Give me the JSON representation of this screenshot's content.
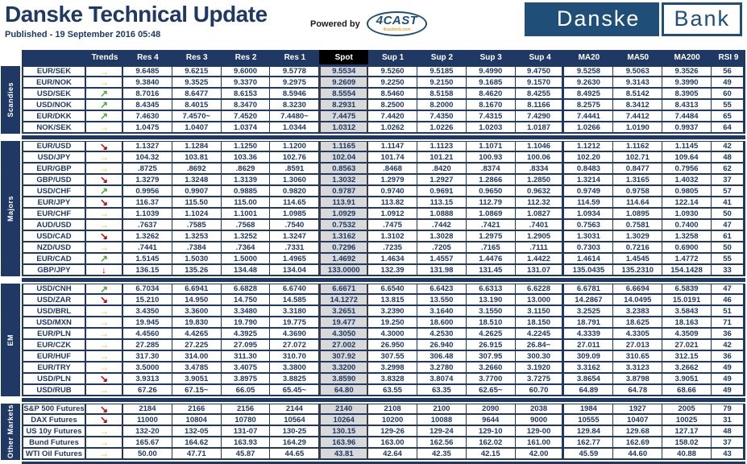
{
  "header": {
    "title": "Danske Technical Update",
    "published": "Published - 19 September 2016 05:48",
    "powered_by": "Powered by",
    "cast_logo": "4CAST",
    "cast_sub": "4castweb.com",
    "bank_logo_left": "Danske",
    "bank_logo_right": "Bank"
  },
  "colors": {
    "navy": "#1F3864",
    "logo_navy": "#1F4E79",
    "spot_header_bg": "#000000",
    "spot_cell_bg": "#D9D9D9",
    "trend_flat": "#FFC000",
    "trend_up": "#4EA72E",
    "trend_down": "#C00000"
  },
  "trends_map": {
    "flat": {
      "glyph": "→",
      "color": "#FFC000"
    },
    "up": {
      "glyph": "↗",
      "color": "#4EA72E"
    },
    "down": {
      "glyph": "↘",
      "color": "#C00000"
    },
    "down-strong": {
      "glyph": "↓",
      "color": "#C00000"
    }
  },
  "table": {
    "columns": [
      "Trends",
      "Res 4",
      "Res 3",
      "Res 2",
      "Res 1",
      "Spot",
      "Sup 1",
      "Sup 2",
      "Sup 3",
      "Sup 4",
      "MA20",
      "MA50",
      "MA200",
      "RSI 9"
    ],
    "groups": [
      {
        "label": "Scandies",
        "rows": [
          {
            "pair": "EUR/SEK",
            "trend": "flat",
            "values": [
              "9.6485",
              "9.6215",
              "9.6000",
              "9.5778",
              "9.5534",
              "9.5260",
              "9.5185",
              "9.4990",
              "9.4750",
              "9.5258",
              "9.5063",
              "9.3526",
              "56"
            ]
          },
          {
            "pair": "EUR/NOK",
            "trend": "flat",
            "values": [
              "9.3840",
              "9.3525",
              "9.3370",
              "9.2975",
              "9.2609",
              "9.2250",
              "9.2150",
              "9.1685",
              "9.1570",
              "9.2630",
              "9.3143",
              "9.3990",
              "49"
            ]
          },
          {
            "pair": "USD/SEK",
            "trend": "up",
            "values": [
              "8.7016",
              "8.6477",
              "8.6153",
              "8.5946",
              "8.5554",
              "8.5460",
              "8.5158",
              "8.4620",
              "8.4255",
              "8.4925",
              "8.5142",
              "8.3905",
              "60"
            ]
          },
          {
            "pair": "USD/NOK",
            "trend": "up",
            "values": [
              "8.4345",
              "8.4015",
              "8.3470",
              "8.3230",
              "8.2931",
              "8.2500",
              "8.2000",
              "8.1670",
              "8.1166",
              "8.2575",
              "8.3412",
              "8.4313",
              "55"
            ]
          },
          {
            "pair": "EUR/DKK",
            "trend": "up",
            "values": [
              "7.4630",
              "7.4570~",
              "7.4520",
              "7.4480~",
              "7.4475",
              "7.4420",
              "7.4350",
              "7.4315",
              "7.4290",
              "7.4441",
              "7.4412",
              "7.4484",
              "65"
            ]
          },
          {
            "pair": "NOK/SEK",
            "trend": "flat",
            "values": [
              "1.0475",
              "1.0407",
              "1.0374",
              "1.0344",
              "1.0312",
              "1.0262",
              "1.0226",
              "1.0203",
              "1.0187",
              "1.0266",
              "1.0190",
              "0.9937",
              "64"
            ]
          }
        ]
      },
      {
        "label": "Majors",
        "rows": [
          {
            "pair": "EUR/USD",
            "trend": "down",
            "values": [
              "1.1327",
              "1.1284",
              "1.1250",
              "1.1200",
              "1.1165",
              "1.1147",
              "1.1123",
              "1.1071",
              "1.1046",
              "1.1212",
              "1.1162",
              "1.1145",
              "42"
            ]
          },
          {
            "pair": "USD/JPY",
            "trend": "flat",
            "values": [
              "104.32",
              "103.81",
              "103.36",
              "102.76",
              "102.04",
              "101.74",
              "101.21",
              "100.93",
              "100.06",
              "102.20",
              "102.71",
              "109.64",
              "48"
            ]
          },
          {
            "pair": "EUR/GBP",
            "trend": "flat",
            "values": [
              ".8725",
              ".8692",
              ".8629",
              ".8591",
              "0.8563",
              ".8468",
              ".8420",
              ".8374",
              ".8334",
              "0.8483",
              "0.8477",
              "0.7956",
              "62"
            ]
          },
          {
            "pair": "GBP/USD",
            "trend": "down",
            "values": [
              "1.3279",
              "1.3248",
              "1.3139",
              "1.3060",
              "1.3032",
              "1.2979",
              "1.2927",
              "1.2866",
              "1.2850",
              "1.3214",
              "1.3165",
              "1.4032",
              "37"
            ]
          },
          {
            "pair": "USD/CHF",
            "trend": "up",
            "values": [
              "0.9956",
              "0.9907",
              "0.9885",
              "0.9820",
              "0.9787",
              "0.9740",
              "0.9691",
              "0.9650",
              "0.9632",
              "0.9749",
              "0.9758",
              "0.9805",
              "57"
            ]
          },
          {
            "pair": "EUR/JPY",
            "trend": "down",
            "values": [
              "116.37",
              "115.50",
              "115.00",
              "114.65",
              "113.91",
              "113.82",
              "113.15",
              "112.79",
              "112.32",
              "114.59",
              "114.64",
              "122.14",
              "41"
            ]
          },
          {
            "pair": "EUR/CHF",
            "trend": "flat",
            "values": [
              "1.1039",
              "1.1024",
              "1.1001",
              "1.0985",
              "1.0929",
              "1.0912",
              "1.0888",
              "1.0869",
              "1.0827",
              "1.0934",
              "1.0895",
              "1.0930",
              "50"
            ]
          },
          {
            "pair": "AUD/USD",
            "trend": "flat",
            "values": [
              ".7637",
              ".7585",
              ".7568",
              ".7540",
              "0.7532",
              ".7475",
              ".7442",
              ".7421",
              ".7401",
              "0.7563",
              "0.7581",
              "0.7400",
              "47"
            ]
          },
          {
            "pair": "USD/CAD",
            "trend": "down",
            "values": [
              "1.3262",
              "1.3253",
              "1.3252",
              "1.3247",
              "1.3162",
              "1.3102",
              "1.3028",
              "1.2975",
              "1.2905",
              "1.3031",
              "1.3029",
              "1.3258",
              "61"
            ]
          },
          {
            "pair": "NZD/USD",
            "trend": "flat",
            "values": [
              ".7441",
              ".7384",
              ".7364",
              ".7331",
              "0.7296",
              ".7235",
              ".7205",
              ".7165",
              ".7111",
              "0.7303",
              "0.7216",
              "0.6900",
              "50"
            ]
          },
          {
            "pair": "EUR/CAD",
            "trend": "up",
            "values": [
              "1.5145",
              "1.5030",
              "1.5000",
              "1.4965",
              "1.4692",
              "1.4634",
              "1.4557",
              "1.4476",
              "1.4422",
              "1.4614",
              "1.4545",
              "1.4772",
              "55"
            ]
          },
          {
            "pair": "GBP/JPY",
            "trend": "down-strong",
            "values": [
              "136.15",
              "135.26",
              "134.48",
              "134.04",
              "133.0000",
              "132.39",
              "131.98",
              "131.45",
              "131.07",
              "135.0435",
              "135.2310",
              "154.1428",
              "33"
            ]
          }
        ]
      },
      {
        "label": "EM",
        "rows": [
          {
            "pair": "USD/CNH",
            "trend": "up",
            "values": [
              "6.7034",
              "6.6941",
              "6.6828",
              "6.6740",
              "6.6671",
              "6.6540",
              "6.6423",
              "6.6313",
              "6.6228",
              "6.6781",
              "6.6694",
              "6.5839",
              "47"
            ]
          },
          {
            "pair": "USD/ZAR",
            "trend": "down",
            "values": [
              "15.210",
              "14.950",
              "14.750",
              "14.585",
              "14.1272",
              "13.815",
              "13.550",
              "13.190",
              "13.000",
              "14.2867",
              "14.0495",
              "15.0191",
              "46"
            ]
          },
          {
            "pair": "USD/BRL",
            "trend": "flat",
            "values": [
              "3.4350",
              "3.3600",
              "3.3480",
              "3.3180",
              "3.2651",
              "3.2390",
              "3.1640",
              "3.1550",
              "3.1150",
              "3.2525",
              "3.2383",
              "3.5843",
              "51"
            ]
          },
          {
            "pair": "USD/MXN",
            "trend": "flat",
            "values": [
              "19.945",
              "19.830",
              "19.790",
              "19.775",
              "19.477",
              "19.250",
              "18.600",
              "18.510",
              "18.150",
              "18.791",
              "18.625",
              "18.163",
              "71"
            ]
          },
          {
            "pair": "EUR/PLN",
            "trend": "flat",
            "values": [
              "4.4560",
              "4.4265",
              "4.3925",
              "4.3690",
              "4.3050",
              "4.3000",
              "4.2530",
              "4.2625",
              "4.2245",
              "4.3339",
              "4.3305",
              "4.3509",
              "36"
            ]
          },
          {
            "pair": "EUR/CZK",
            "trend": "flat",
            "values": [
              "27.285",
              "27.225",
              "27.095",
              "27.072",
              "27.002",
              "26.950",
              "26.940",
              "26.915",
              "26.84~",
              "27.011",
              "27.013",
              "27.021",
              "42"
            ]
          },
          {
            "pair": "EUR/HUF",
            "trend": "flat",
            "values": [
              "317.30",
              "314.00",
              "311.30",
              "310.70",
              "307.92",
              "307.55",
              "306.48",
              "307.95",
              "300.30",
              "309.09",
              "310.65",
              "312.15",
              "36"
            ]
          },
          {
            "pair": "EUR/TRY",
            "trend": "flat",
            "values": [
              "3.5000",
              "3.4785",
              "3.4075",
              "3.3800",
              "3.3200",
              "3.2998",
              "3.2780",
              "3.2660",
              "3.1920",
              "3.3162",
              "3.3123",
              "3.2662",
              "49"
            ]
          },
          {
            "pair": "USD/PLN",
            "trend": "down",
            "values": [
              "3.9313",
              "3.9051",
              "3.8975",
              "3.8825",
              "3.8590",
              "3.8328",
              "3.8074",
              "3.7700",
              "3.7275",
              "3.8654",
              "3.8798",
              "3.9051",
              "49"
            ]
          },
          {
            "pair": "USD/RUB",
            "trend": "flat",
            "values": [
              "67.26",
              "67.15~",
              "66.05",
              "65.45~",
              "64.80",
              "63.55",
              "63.35",
              "62.65~",
              "60.70",
              "64.89",
              "64.78",
              "68.66",
              "49"
            ]
          }
        ]
      },
      {
        "label": "Other Markets",
        "rows": [
          {
            "pair": "S&P 500 Futures",
            "trend": "down",
            "values": [
              "2184",
              "2166",
              "2156",
              "2144",
              "2140",
              "2108",
              "2100",
              "2090",
              "2038",
              "1984",
              "1927",
              "2005",
              "79"
            ]
          },
          {
            "pair": "DAX Futures",
            "trend": "down",
            "values": [
              "11000",
              "10804",
              "10780",
              "10564",
              "10264",
              "10200",
              "10088",
              "9644",
              "9000",
              "10555",
              "10407",
              "10025",
              "31"
            ]
          },
          {
            "pair": "US 10y Futures",
            "trend": "flat",
            "values": [
              "132-20",
              "132-05",
              "131-07",
              "130-25",
              "130.15",
              "129-26",
              "129-24",
              "129-10",
              "129-00",
              "129.84",
              "129.68",
              "127.17",
              "48"
            ]
          },
          {
            "pair": "Bund Futures",
            "trend": "flat",
            "values": [
              "165.67",
              "164.62",
              "163.93",
              "164.29",
              "163.96",
              "163.00",
              "162.56",
              "162.02",
              "161.00",
              "162.77",
              "162.69",
              "158.02",
              "37"
            ]
          },
          {
            "pair": "WTI Oil Futures",
            "trend": "flat",
            "values": [
              "50.00",
              "47.71",
              "45.87",
              "44.65",
              "43.81",
              "42.64",
              "42.35",
              "42.15",
              "42.00",
              "45.59",
              "44.60",
              "40.88",
              "43"
            ]
          }
        ]
      }
    ]
  }
}
